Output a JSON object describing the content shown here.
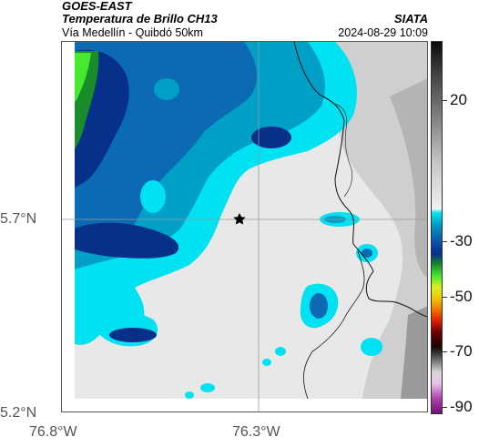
{
  "header": {
    "satellite": "GOES-EAST",
    "product": "Temperatura de Brillo CH13",
    "route": "Vía Medellín - Quibdó 50km",
    "organization": "SIATA",
    "datetime": "2024-08-29 10:09"
  },
  "map": {
    "lat_ticks": [
      "5.7°N",
      "5.2°N"
    ],
    "lon_ticks": [
      "76.8°W",
      "76.3°W"
    ],
    "marker": "star-icon",
    "colors": {
      "warm_light": "#e8e8e8",
      "warm_mid": "#cfcfcf",
      "cloud_cyan": "#00e1f2",
      "cloud_teal": "#009fc6",
      "cloud_blue": "#0c6ab5",
      "cloud_navy": "#06308a",
      "cloud_green": "#1a8c2a",
      "cloud_lime": "#46e830"
    }
  },
  "colorbar": {
    "labels": [
      "20",
      "-30",
      "-50",
      "-70",
      "-90"
    ],
    "values": [
      20,
      -30,
      -50,
      -70,
      -90
    ]
  }
}
